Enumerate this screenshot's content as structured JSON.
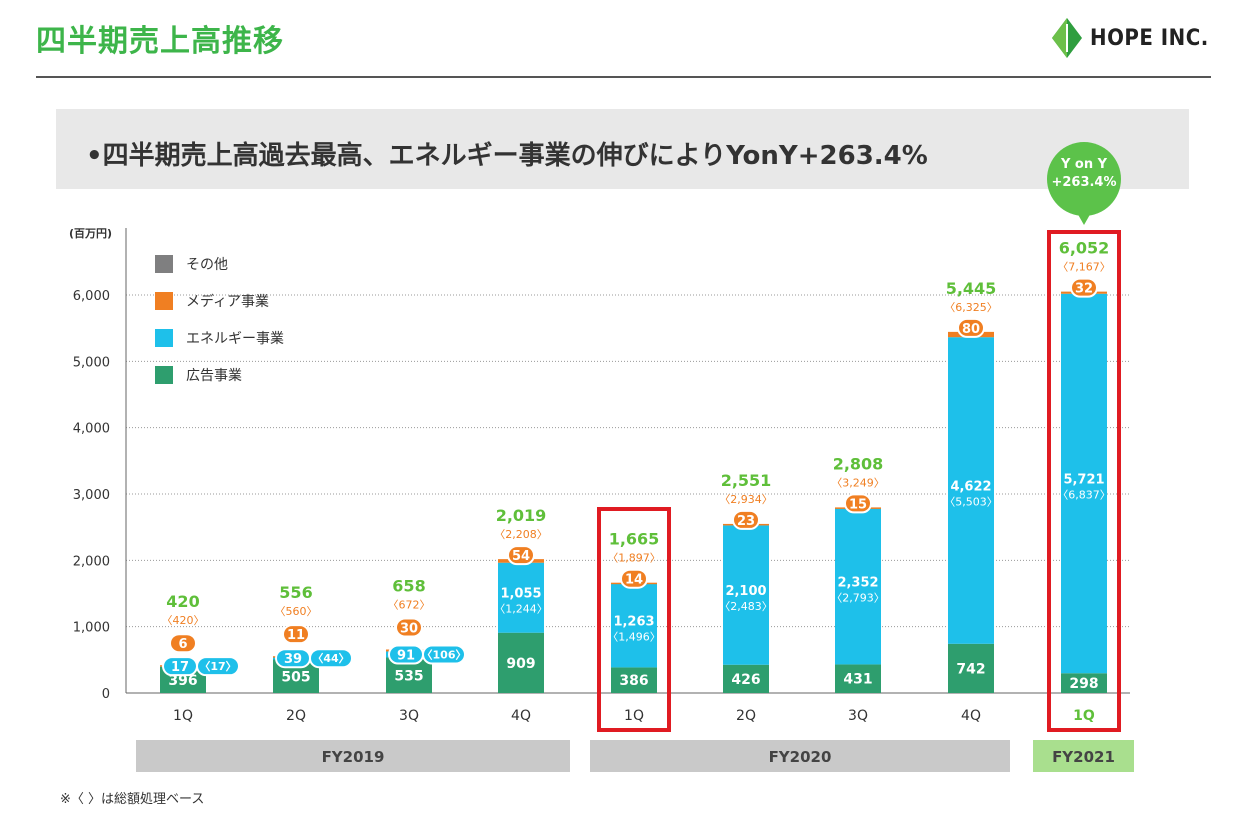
{
  "header": {
    "title": "四半期売上高推移",
    "logo_text": "HOPE INC."
  },
  "banner": {
    "text": "•四半期売上高過去最高、エネルギー事業の伸びによりYonY+263.4%"
  },
  "yony_bubble": {
    "line1": "Y on Y",
    "line2": "+263.4%"
  },
  "footnote": "※〈 〉は総額処理ベース",
  "colors": {
    "ad": "#2e9e6e",
    "energy": "#1ec0ea",
    "media": "#f07f22",
    "other": "#7f7f80",
    "total": "#5fbf3a",
    "highlight": "#e01b22",
    "fy_gray": "#c9c9c9",
    "fy_green": "#a9df8e",
    "bubble": "#5cc24a"
  },
  "chart_data": {
    "type": "bar",
    "stacked": true,
    "unit_label": "(百万円)",
    "ylim": [
      0,
      6500
    ],
    "yticks": [
      0,
      1000,
      2000,
      3000,
      4000,
      5000,
      6000
    ],
    "ytick_labels": [
      "0",
      "1,000",
      "2,000",
      "3,000",
      "4,000",
      "5,000",
      "6,000"
    ],
    "grid": true,
    "legend_position": "top-left",
    "legend": [
      "その他",
      "メディア事業",
      "エネルギー事業",
      "広告事業"
    ],
    "categories": [
      "1Q",
      "2Q",
      "3Q",
      "4Q",
      "1Q",
      "2Q",
      "3Q",
      "4Q",
      "1Q"
    ],
    "fiscal_years": [
      {
        "label": "FY2019",
        "span": [
          0,
          3
        ],
        "style": "gray"
      },
      {
        "label": "FY2020",
        "span": [
          4,
          7
        ],
        "style": "gray"
      },
      {
        "label": "FY2021",
        "span": [
          8,
          8
        ],
        "style": "green"
      }
    ],
    "series": [
      {
        "name": "広告事業",
        "values": [
          396,
          505,
          535,
          909,
          386,
          426,
          431,
          742,
          298
        ],
        "labels": [
          "396",
          "505",
          "535",
          "909",
          "386",
          "426",
          "431",
          "742",
          "298"
        ]
      },
      {
        "name": "エネルギー事業",
        "values": [
          17,
          39,
          91,
          1055,
          1263,
          2100,
          2352,
          4622,
          5721
        ],
        "labels": [
          "17",
          "39",
          "91",
          "1,055",
          "1,263",
          "2,100",
          "2,352",
          "4,622",
          "5,721"
        ],
        "gross_labels": [
          "〈17〉",
          "〈44〉",
          "〈106〉",
          "〈1,244〉",
          "〈1,496〉",
          "〈2,483〉",
          "〈2,793〉",
          "〈5,503〉",
          "〈6,837〉"
        ]
      },
      {
        "name": "メディア事業",
        "values": [
          6,
          11,
          30,
          54,
          14,
          23,
          15,
          80,
          32
        ],
        "labels": [
          "6",
          "11",
          "30",
          "54",
          "14",
          "23",
          "15",
          "80",
          "32"
        ]
      }
    ],
    "totals": [
      420,
      556,
      658,
      2019,
      1665,
      2551,
      2808,
      5445,
      6052
    ],
    "total_labels": [
      "420",
      "556",
      "658",
      "2,019",
      "1,665",
      "2,551",
      "2,808",
      "5,445",
      "6,052"
    ],
    "gross_totals": [
      "〈420〉",
      "〈560〉",
      "〈672〉",
      "〈2,208〉",
      "〈1,897〉",
      "〈2,934〉",
      "〈3,249〉",
      "〈6,325〉",
      "〈7,167〉"
    ],
    "highlighted": [
      4,
      8
    ]
  }
}
